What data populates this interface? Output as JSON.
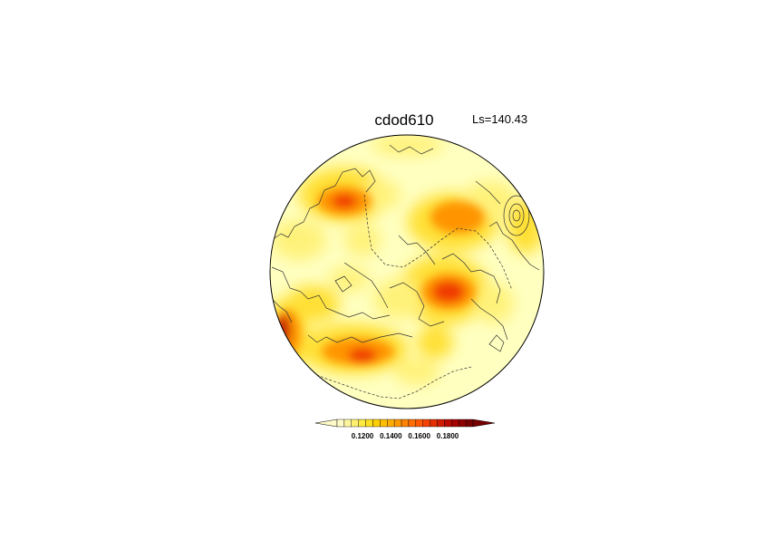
{
  "title": "cdod610",
  "ls_label": "Ls=140.43",
  "colorbar": {
    "tick_labels": [
      "0.1200",
      "0.1400",
      "0.1600",
      "0.1800"
    ],
    "colors": [
      "#fffbc8",
      "#fff7a0",
      "#fff170",
      "#ffea40",
      "#ffe020",
      "#ffd000",
      "#ffbf00",
      "#ffac00",
      "#ff9800",
      "#ff8300",
      "#ff6e00",
      "#ff5800",
      "#f44200",
      "#e52e00",
      "#d11b00",
      "#bb0a00",
      "#a50000",
      "#8e0000",
      "#780000"
    ]
  },
  "map_colors": {
    "background": "#ffffc0",
    "light": "#fff27a",
    "yellow": "#ffe034",
    "orange": "#ff9400",
    "red": "#f03a00",
    "darkred": "#c40e00"
  }
}
